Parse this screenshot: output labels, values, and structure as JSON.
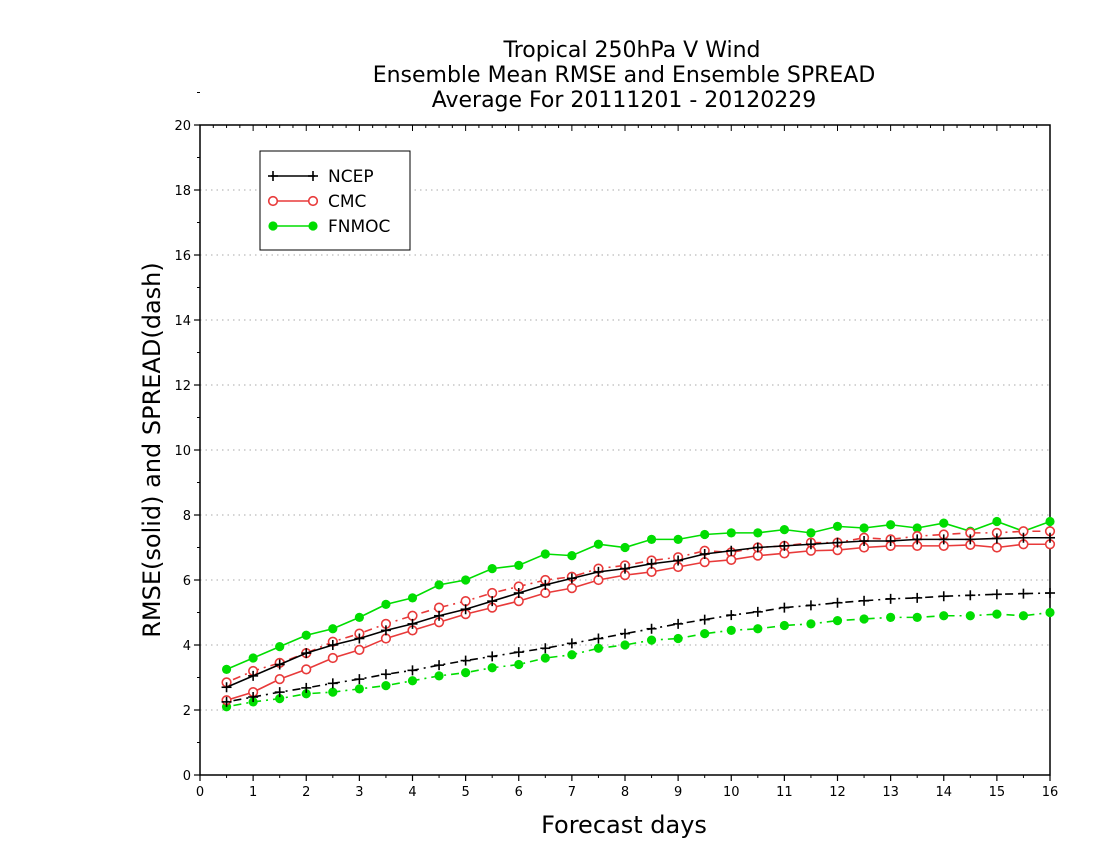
{
  "chart_data": {
    "type": "line",
    "title": [
      "Tropical 250hPa V Wind",
      "Ensemble Mean RMSE and Ensemble SPREAD",
      "Average For 20111201 - 20120229"
    ],
    "xlabel": "Forecast days",
    "ylabel": "RMSE(solid) and SPREAD(dash)",
    "xlim": [
      0,
      16
    ],
    "ylim": [
      0,
      20
    ],
    "xticks": [
      "0",
      "1",
      "2",
      "3",
      "4",
      "5",
      "6",
      "7",
      "8",
      "9",
      "10",
      "11",
      "12",
      "13",
      "14",
      "15",
      "16"
    ],
    "yticks": [
      "0",
      "2",
      "4",
      "6",
      "8",
      "10",
      "12",
      "14",
      "16",
      "18",
      "20"
    ],
    "grid": "horizontal dotted",
    "legend_position": "top-left",
    "x": [
      0.5,
      1,
      1.5,
      2,
      2.5,
      3,
      3.5,
      4,
      4.5,
      5,
      5.5,
      6,
      6.5,
      7,
      7.5,
      8,
      8.5,
      9,
      9.5,
      10,
      10.5,
      11,
      11.5,
      12,
      12.5,
      13,
      13.5,
      14,
      14.5,
      15,
      15.5,
      16
    ],
    "series": [
      {
        "name": "NCEP",
        "marker": "plus",
        "color": "#000000",
        "rmse": [
          2.7,
          3.05,
          3.4,
          3.75,
          4.0,
          4.2,
          4.45,
          4.65,
          4.9,
          5.1,
          5.35,
          5.6,
          5.85,
          6.05,
          6.25,
          6.35,
          6.5,
          6.6,
          6.8,
          6.9,
          7.0,
          7.05,
          7.1,
          7.15,
          7.2,
          7.2,
          7.25,
          7.25,
          7.25,
          7.28,
          7.3,
          7.3
        ],
        "spread": [
          2.25,
          2.4,
          2.55,
          2.68,
          2.82,
          2.95,
          3.1,
          3.22,
          3.38,
          3.52,
          3.65,
          3.78,
          3.9,
          4.05,
          4.2,
          4.35,
          4.5,
          4.65,
          4.78,
          4.92,
          5.02,
          5.15,
          5.22,
          5.3,
          5.36,
          5.42,
          5.45,
          5.5,
          5.53,
          5.56,
          5.58,
          5.6
        ]
      },
      {
        "name": "CMC",
        "marker": "open-circle",
        "color": "#e83a3a",
        "rmse": [
          2.3,
          2.55,
          2.95,
          3.25,
          3.6,
          3.85,
          4.2,
          4.45,
          4.7,
          4.95,
          5.15,
          5.35,
          5.6,
          5.75,
          6.0,
          6.15,
          6.25,
          6.4,
          6.55,
          6.62,
          6.75,
          6.82,
          6.9,
          6.92,
          7.0,
          7.05,
          7.05,
          7.05,
          7.08,
          7.0,
          7.1,
          7.1
        ],
        "spread": [
          2.85,
          3.2,
          3.45,
          3.75,
          4.1,
          4.35,
          4.65,
          4.9,
          5.15,
          5.35,
          5.6,
          5.8,
          6.0,
          6.1,
          6.35,
          6.45,
          6.6,
          6.7,
          6.9,
          6.85,
          7.0,
          7.05,
          7.15,
          7.15,
          7.3,
          7.25,
          7.35,
          7.4,
          7.45,
          7.45,
          7.5,
          7.5
        ]
      },
      {
        "name": "FNMOC",
        "marker": "filled-circle",
        "color": "#00dd00",
        "rmse": [
          3.25,
          3.6,
          3.95,
          4.3,
          4.5,
          4.85,
          5.25,
          5.45,
          5.85,
          6.0,
          6.35,
          6.45,
          6.8,
          6.75,
          7.1,
          7.0,
          7.25,
          7.25,
          7.4,
          7.45,
          7.45,
          7.55,
          7.45,
          7.65,
          7.6,
          7.7,
          7.6,
          7.75,
          7.5,
          7.8,
          7.5,
          7.8
        ],
        "spread": [
          2.1,
          2.25,
          2.35,
          2.5,
          2.55,
          2.65,
          2.75,
          2.9,
          3.05,
          3.15,
          3.3,
          3.4,
          3.6,
          3.7,
          3.9,
          4.0,
          4.15,
          4.2,
          4.35,
          4.45,
          4.5,
          4.6,
          4.65,
          4.75,
          4.8,
          4.85,
          4.85,
          4.9,
          4.9,
          4.95,
          4.9,
          5.0
        ]
      }
    ]
  }
}
